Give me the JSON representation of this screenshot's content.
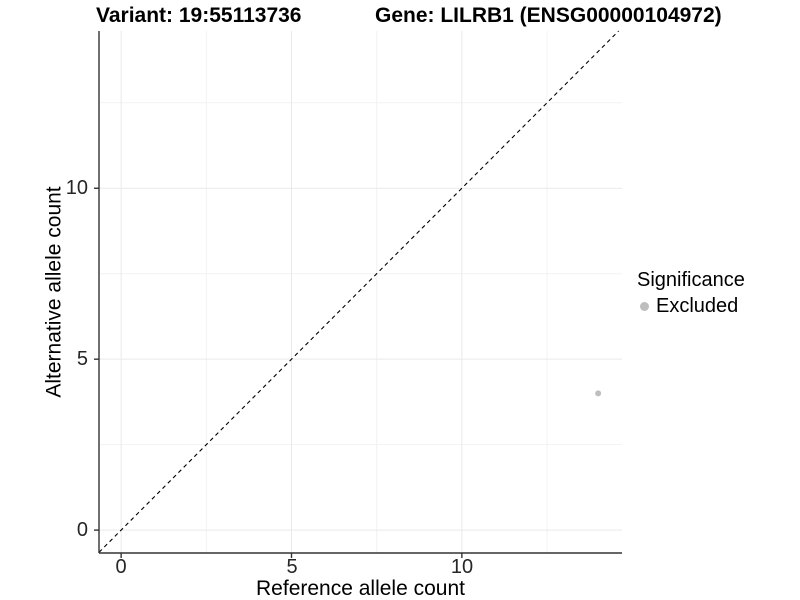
{
  "figure": {
    "background": "#ffffff"
  },
  "chart_data": {
    "type": "scatter",
    "titles": {
      "variant": "Variant: 19:55113736",
      "gene": "Gene: LILRB1 (ENSG00000104972)"
    },
    "xlabel": "Reference allele count",
    "ylabel": "Alternative allele count",
    "xlim": [
      -0.65,
      14.7
    ],
    "ylim": [
      -0.67,
      14.6
    ],
    "x_ticks": [
      "0",
      "5",
      "10"
    ],
    "y_ticks": [
      "0",
      "5",
      "10"
    ],
    "x_tick_values": [
      0,
      5,
      10
    ],
    "y_tick_values": [
      0,
      5,
      10
    ],
    "x_minor_tick_values": [
      2.5,
      7.5,
      12.5
    ],
    "y_minor_tick_values": [
      2.5,
      7.5,
      12.5
    ],
    "grid": "major+minor, light gray on white",
    "points": [
      {
        "x": 14,
        "y": 4,
        "significance": "Excluded"
      }
    ],
    "reference_line": {
      "type": "identity y=x",
      "style": "dashed",
      "color": "#000000"
    },
    "legend": {
      "position": "right",
      "title": "Significance",
      "entries": [
        {
          "label": "Excluded",
          "color": "#bebebe"
        }
      ]
    },
    "colors": {
      "point": "#bebebe",
      "axis": "#333333",
      "tick_mark": "#333333",
      "tick_text": "#262626",
      "title_text": "#000000",
      "grid_major": "#e9e9e9",
      "grid_minor": "#f2f2f2"
    }
  }
}
